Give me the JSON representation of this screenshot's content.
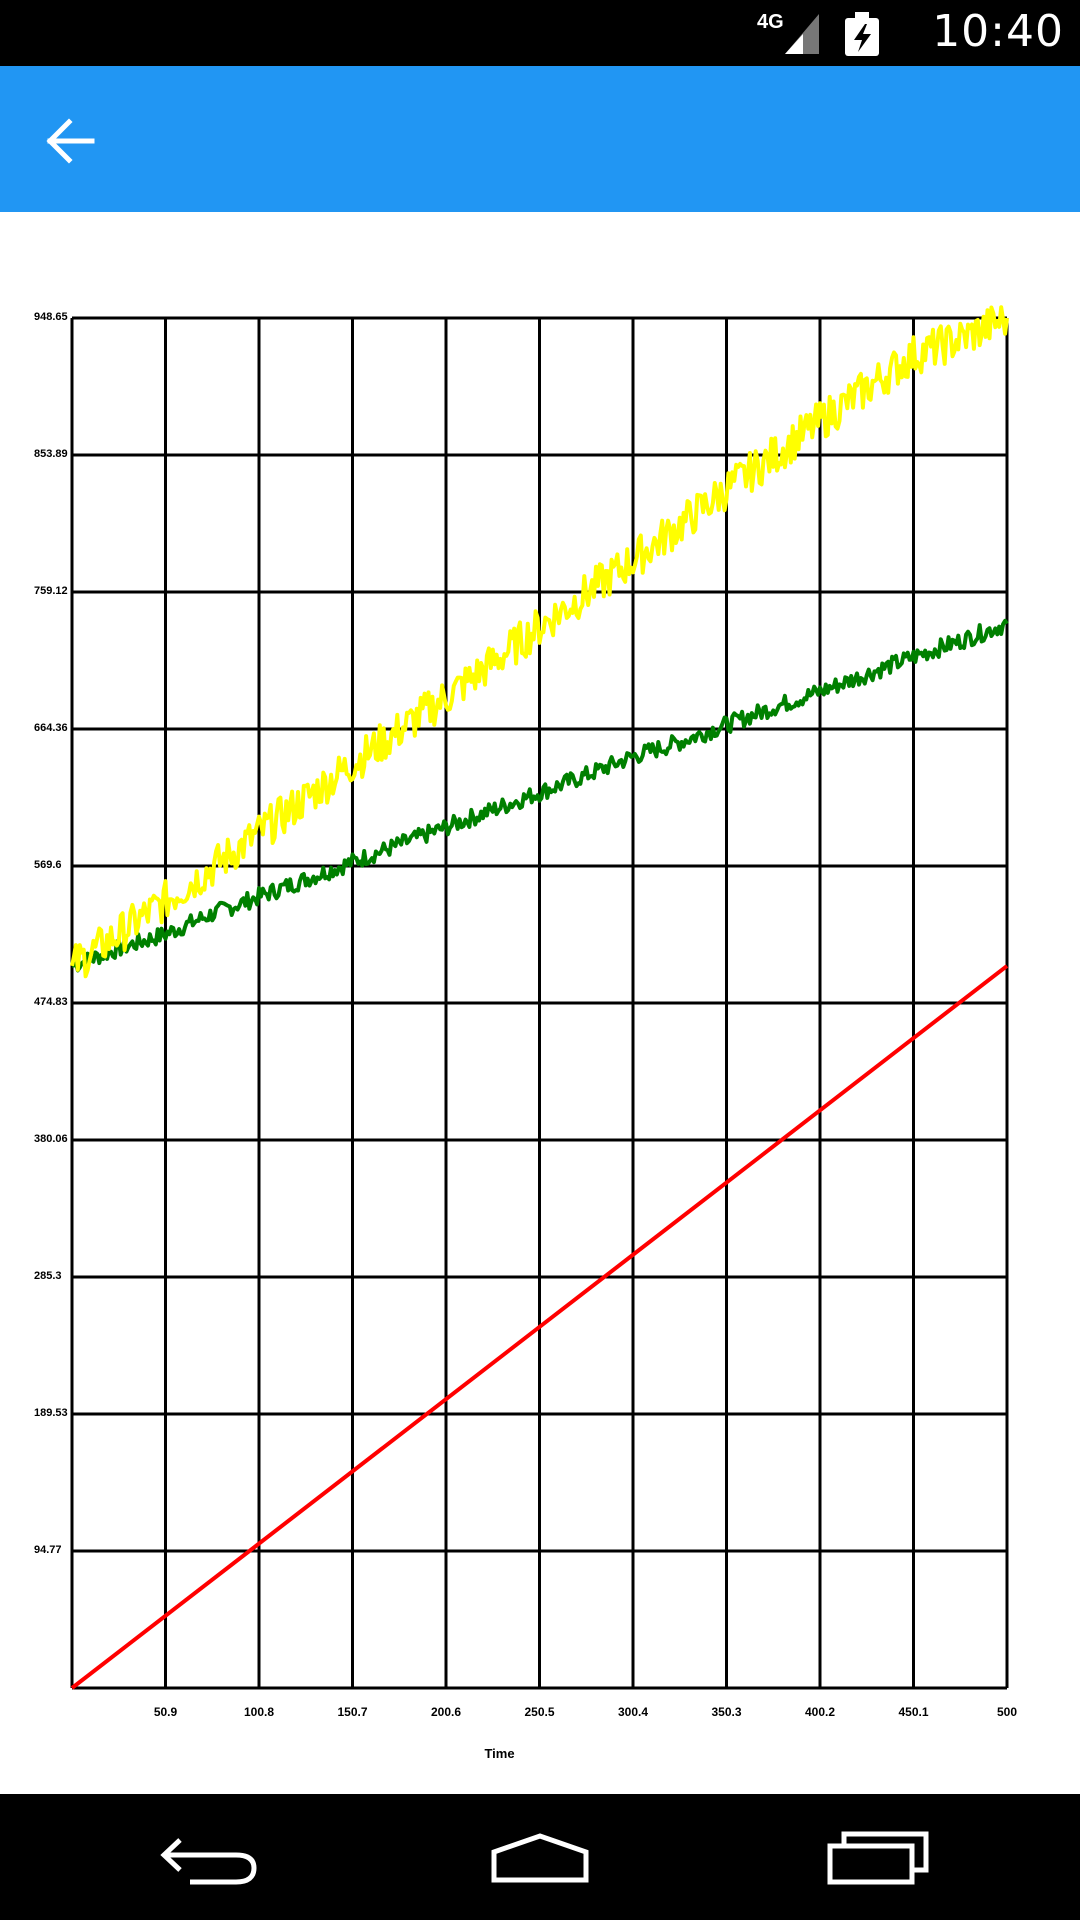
{
  "status_bar": {
    "time": "10:40",
    "network": "4G",
    "icons": [
      "signal-icon",
      "battery-charging-icon"
    ]
  },
  "app_bar": {
    "back_icon": "arrow-left-icon",
    "color": "#2196F3"
  },
  "chart_data": {
    "type": "line",
    "xlabel": "Time",
    "ylabel": "",
    "title": "",
    "xlim": [
      0,
      500
    ],
    "ylim": [
      0,
      948.65
    ],
    "x_ticks": [
      "50.9",
      "100.8",
      "150.7",
      "200.6",
      "250.5",
      "300.4",
      "350.3",
      "400.2",
      "450.1",
      "500"
    ],
    "y_ticks": [
      "94.77",
      "189.53",
      "285.3",
      "380.06",
      "474.83",
      "569.6",
      "664.36",
      "759.12",
      "853.89",
      "948.65"
    ],
    "grid": true,
    "series": [
      {
        "color": "#ff0000",
        "x": [
          0,
          500
        ],
        "y": [
          0,
          500
        ]
      },
      {
        "color": "#008000",
        "x": [
          0,
          25,
          50,
          75,
          100,
          125,
          150,
          175,
          200,
          225,
          250,
          275,
          300,
          325,
          350,
          375,
          400,
          425,
          450,
          475,
          500
        ],
        "y": [
          500,
          512,
          522,
          536,
          548,
          560,
          572,
          584,
          596,
          608,
          620,
          632,
          645,
          655,
          667,
          679,
          690,
          702,
          714,
          725,
          737
        ]
      },
      {
        "color": "#ffff00",
        "x": [
          0,
          25,
          50,
          75,
          100,
          125,
          150,
          175,
          200,
          225,
          250,
          275,
          300,
          325,
          350,
          375,
          400,
          425,
          450,
          475,
          500
        ],
        "y": [
          500,
          522,
          545,
          568,
          592,
          616,
          640,
          663,
          686,
          710,
          735,
          758,
          781,
          805,
          830,
          853,
          877,
          900,
          923,
          934,
          948.65
        ]
      }
    ]
  },
  "navigation": {
    "back_icon": "nav-back-icon",
    "home_icon": "nav-home-icon",
    "recents_icon": "nav-recents-icon"
  }
}
